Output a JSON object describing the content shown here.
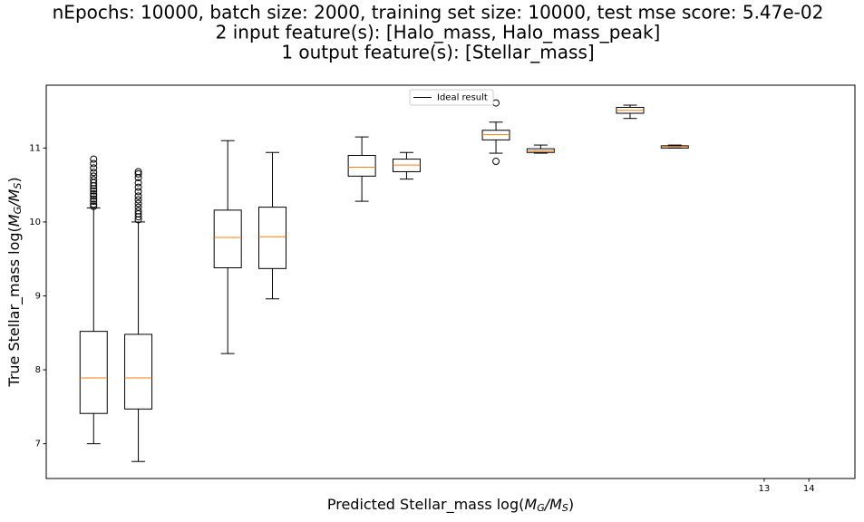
{
  "chart_data": {
    "type": "box",
    "title": [
      "nEpochs: 10000, batch size: 2000, training set size: 10000, test mse score: 5.47e-02",
      "2 input feature(s): [Halo_mass, Halo_mass_peak]",
      "1 output feature(s): [Stellar_mass]"
    ],
    "xlabel": [
      {
        "text": "Predicted Stellar_mass log(",
        "style": "normal"
      },
      {
        "text": "M",
        "style": "italic"
      },
      {
        "text": "G",
        "style": "sub"
      },
      {
        "text": "/",
        "style": "italic"
      },
      {
        "text": "M",
        "style": "italic"
      },
      {
        "text": "S",
        "style": "sub"
      },
      {
        "text": ")",
        "style": "normal"
      }
    ],
    "ylabel": [
      {
        "text": "True Stellar_mass log(",
        "style": "normal"
      },
      {
        "text": "M",
        "style": "italic"
      },
      {
        "text": "G",
        "style": "sub"
      },
      {
        "text": "/",
        "style": "italic"
      },
      {
        "text": "M",
        "style": "italic"
      },
      {
        "text": "S",
        "style": "sub"
      },
      {
        "text": ")",
        "style": "normal"
      }
    ],
    "xlim": [
      -3.06,
      15.03
    ],
    "ylim": [
      6.53,
      11.85
    ],
    "xticks": [
      13,
      14
    ],
    "yticks": [
      7,
      8,
      9,
      10,
      11
    ],
    "box_color": "#000000",
    "median_color": "#ff7f0e",
    "legend_loc": "upper center",
    "lines": [
      {
        "name": "Ideal result",
        "color": "#000000"
      }
    ],
    "boxes": [
      {
        "position": -2,
        "whislo": 7.0,
        "q1": 7.41,
        "med": 7.89,
        "q3": 8.52,
        "whishi": 10.19,
        "fliers": [
          10.21,
          10.24,
          10.28,
          10.31,
          10.35,
          10.38,
          10.42,
          10.45,
          10.49,
          10.53,
          10.57,
          10.62,
          10.67,
          10.73,
          10.79,
          10.85
        ]
      },
      {
        "position": -1,
        "whislo": 6.76,
        "q1": 7.47,
        "med": 7.89,
        "q3": 8.48,
        "whishi": 10.0,
        "fliers": [
          10.03,
          10.07,
          10.11,
          10.15,
          10.2,
          10.25,
          10.3,
          10.35,
          10.41,
          10.47,
          10.53,
          10.6,
          10.65,
          10.68
        ]
      },
      {
        "position": 1,
        "whislo": 8.22,
        "q1": 9.38,
        "med": 9.79,
        "q3": 10.16,
        "whishi": 11.1,
        "fliers": []
      },
      {
        "position": 2,
        "whislo": 8.96,
        "q1": 9.37,
        "med": 9.8,
        "q3": 10.2,
        "whishi": 10.94,
        "fliers": []
      },
      {
        "position": 4,
        "whislo": 10.28,
        "q1": 10.62,
        "med": 10.74,
        "q3": 10.9,
        "whishi": 11.15,
        "fliers": []
      },
      {
        "position": 5,
        "whislo": 10.58,
        "q1": 10.68,
        "med": 10.77,
        "q3": 10.85,
        "whishi": 10.94,
        "fliers": []
      },
      {
        "position": 7,
        "whislo": 10.93,
        "q1": 11.11,
        "med": 11.18,
        "q3": 11.24,
        "whishi": 11.35,
        "fliers": [
          10.82,
          11.61
        ]
      },
      {
        "position": 8,
        "whislo": 10.93,
        "q1": 10.94,
        "med": 10.96,
        "q3": 10.99,
        "whishi": 11.04,
        "fliers": []
      },
      {
        "position": 10,
        "whislo": 11.4,
        "q1": 11.47,
        "med": 11.51,
        "q3": 11.55,
        "whishi": 11.58,
        "fliers": []
      },
      {
        "position": 11,
        "whislo": 11.0,
        "q1": 11.0,
        "med": 11.02,
        "q3": 11.03,
        "whishi": 11.04,
        "fliers": []
      }
    ]
  }
}
